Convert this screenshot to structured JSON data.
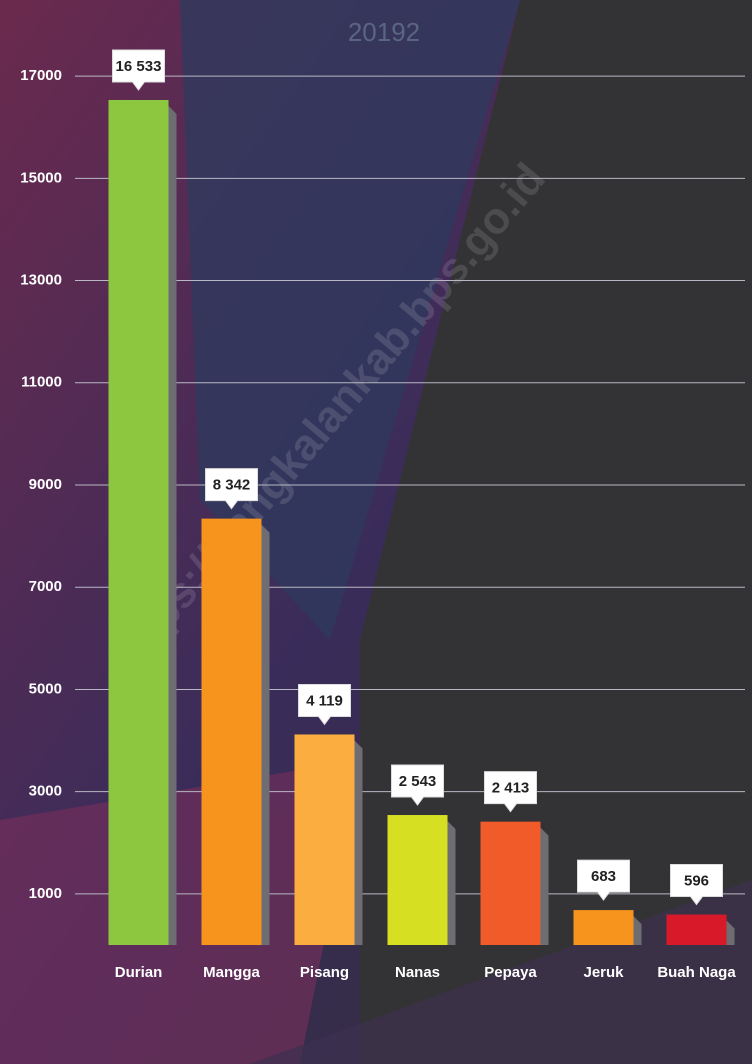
{
  "chart_data": {
    "type": "bar",
    "title": "20192",
    "watermark": "https://bangkalankab.bps.go.id",
    "categories": [
      "Durian",
      "Mangga",
      "Pisang",
      "Nanas",
      "Pepaya",
      "Jeruk",
      "Buah Naga"
    ],
    "values": [
      16533,
      8342,
      4119,
      2543,
      2413,
      683,
      596
    ],
    "value_labels": [
      "16 533",
      "8 342",
      "4 119",
      "2 543",
      "2 413",
      "683",
      "596"
    ],
    "colors": [
      "#8dc63f",
      "#f7941d",
      "#fbad3f",
      "#d7df23",
      "#f15a29",
      "#f7941d",
      "#d7192a"
    ],
    "ylim": [
      0,
      18000
    ],
    "yticks": [
      1000,
      3000,
      5000,
      7000,
      9000,
      11000,
      13000,
      15000,
      17000
    ],
    "grid": true
  }
}
